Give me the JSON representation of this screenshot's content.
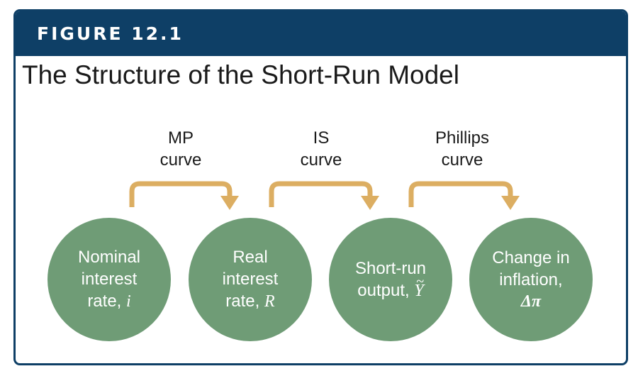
{
  "header": {
    "figure_label": "FIGURE 12.1"
  },
  "title": "The Structure of the Short-Run Model",
  "curves": [
    {
      "line1": "MP",
      "line2": "curve"
    },
    {
      "line1": "IS",
      "line2": "curve"
    },
    {
      "line1": "Phillips",
      "line2": "curve"
    }
  ],
  "nodes": [
    {
      "line1": "Nominal",
      "line2": "interest",
      "line3": "rate,",
      "symbol": "i"
    },
    {
      "line1": "Real",
      "line2": "interest",
      "line3": "rate,",
      "symbol": "R"
    },
    {
      "line1": "Short-run",
      "line2": "output,",
      "symbol": "Y",
      "accent": "~"
    },
    {
      "line1": "Change in",
      "line2": "inflation,",
      "symbol": "Δπ"
    }
  ],
  "colors": {
    "header": "#0e3f66",
    "node": "#6f9c76",
    "arrow": "#dcae62"
  }
}
